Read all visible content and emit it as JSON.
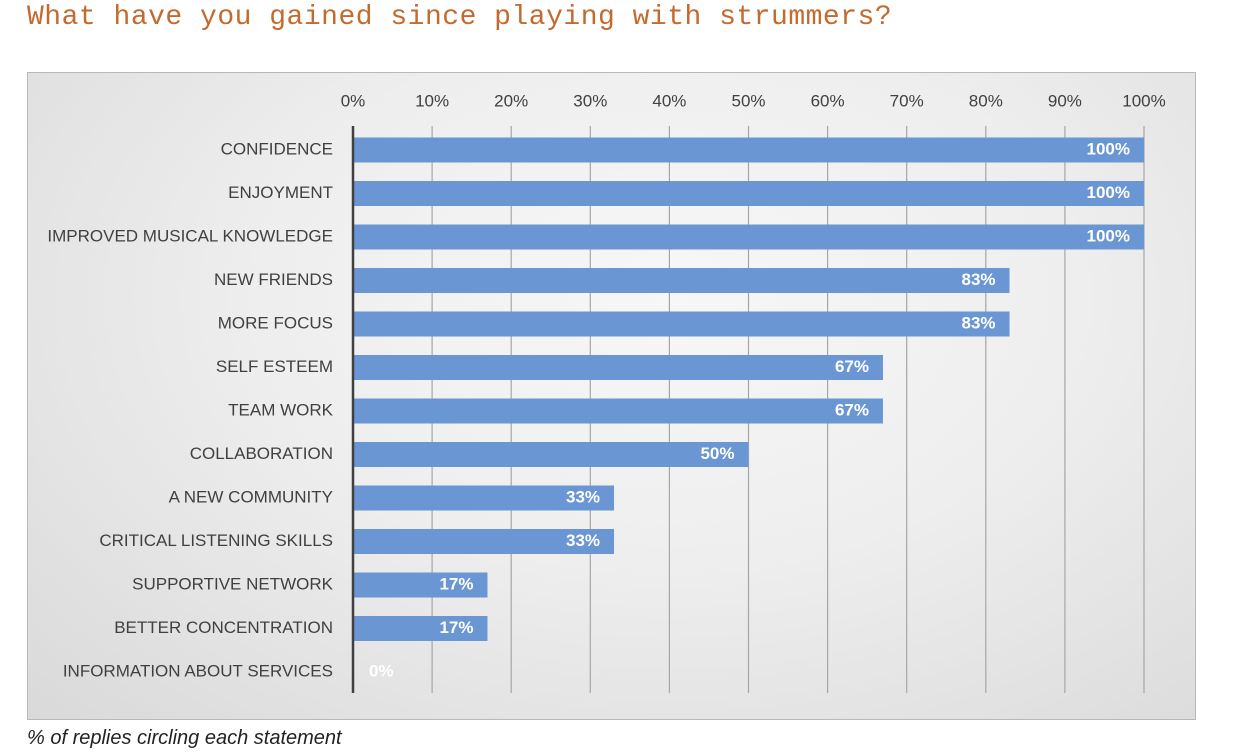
{
  "page": {
    "title": "What have you gained since playing with strummers?",
    "caption": "% of replies circling each statement"
  },
  "colors": {
    "title": "#c46a2e",
    "bar": "#6a96d4",
    "value_label": "#ffffff",
    "gridline": "#a6a6a6",
    "axis_line": "#404040",
    "panel_background": "#e6e6e6"
  },
  "chart_data": {
    "type": "bar",
    "orientation": "horizontal",
    "categories": [
      "CONFIDENCE",
      "ENJOYMENT",
      "IMPROVED MUSICAL KNOWLEDGE",
      "NEW FRIENDS",
      "MORE FOCUS",
      "SELF ESTEEM",
      "TEAM WORK",
      "COLLABORATION",
      "A NEW COMMUNITY",
      "CRITICAL LISTENING SKILLS",
      "SUPPORTIVE NETWORK",
      "BETTER CONCENTRATION",
      "INFORMATION ABOUT SERVICES"
    ],
    "values": [
      100,
      100,
      100,
      83,
      83,
      67,
      67,
      50,
      33,
      33,
      17,
      17,
      0
    ],
    "value_labels": [
      "100%",
      "100%",
      "100%",
      "83%",
      "83%",
      "67%",
      "67%",
      "50%",
      "33%",
      "33%",
      "17%",
      "17%",
      "0%"
    ],
    "title": "",
    "xlabel": "",
    "ylabel": "",
    "xlim": [
      0,
      100
    ],
    "x_ticks": [
      "0%",
      "10%",
      "20%",
      "30%",
      "40%",
      "50%",
      "60%",
      "70%",
      "80%",
      "90%",
      "100%"
    ],
    "x_axis_position": "top",
    "grid": true,
    "legend": "none"
  }
}
